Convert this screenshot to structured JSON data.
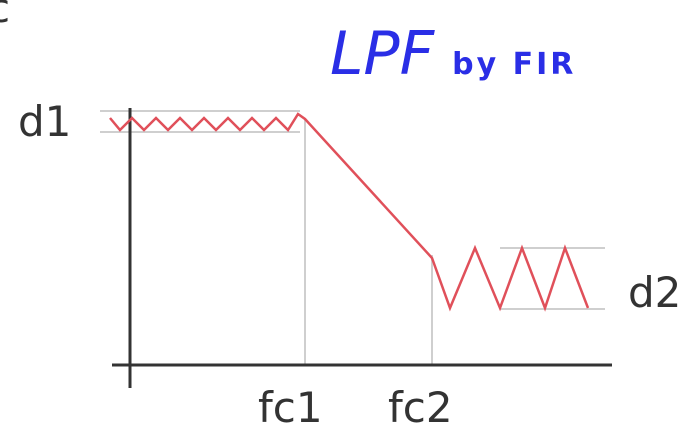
{
  "title": {
    "main": "LPF",
    "sub": "by FIR"
  },
  "corner_mark": "c",
  "labels": {
    "d1": "d1",
    "d2": "d2",
    "fc1": "fc1",
    "fc2": "fc2"
  },
  "colors": {
    "title": "#2a2ee6",
    "curve": "#e0505a",
    "axis": "#333333",
    "guide": "#cfcfcf",
    "label": "#333333"
  }
}
